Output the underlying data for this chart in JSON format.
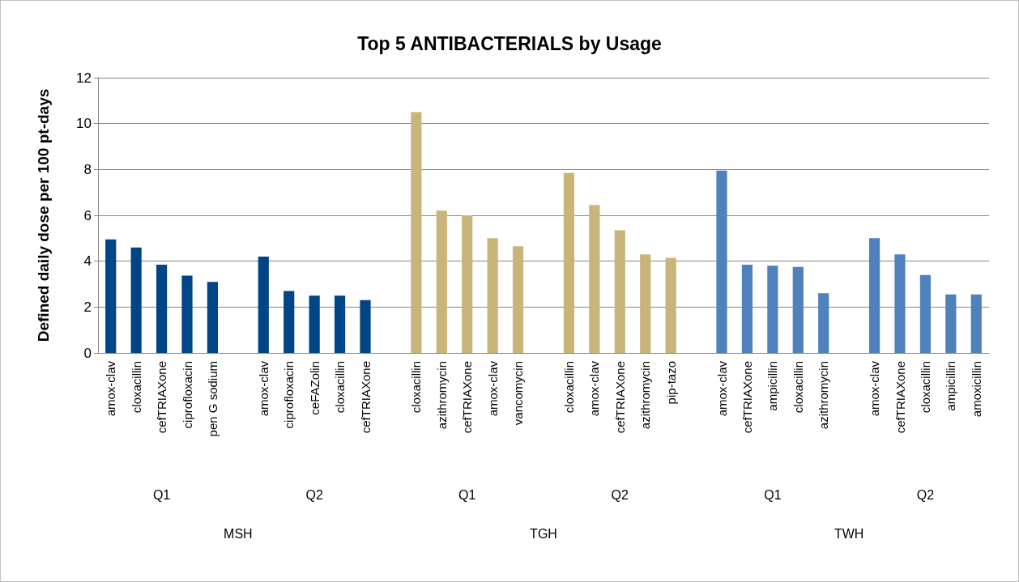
{
  "chart_data": {
    "type": "bar",
    "title": "Top 5 ANTIBACTERIALS by Usage",
    "ylabel": "Defined daily dose per 100 pt-days",
    "categories": [
      "amox-clav",
      "cloxacillin",
      "cefTRIAXone",
      "ciprofloxacin",
      "pen G sodium",
      null,
      "amox-clav",
      "ciprofloxacin",
      "ceFAZolin",
      "cloxacillin",
      "cefTRIAXone",
      null,
      "cloxacillin",
      "azithromycin",
      "cefTRIAXone",
      "amox-clav",
      "vancomycin",
      null,
      "cloxacillin",
      "amox-clav",
      "cefTRIAXone",
      "azithromycin",
      "pip-tazo",
      null,
      "amox-clav",
      "cefTRIAXone",
      "ampicillin",
      "cloxacillin",
      "azithromycin",
      null,
      "amox-clav",
      "cefTRIAXone",
      "cloxacillin",
      "ampicillin",
      "amoxicillin"
    ],
    "values": [
      4.95,
      4.6,
      3.85,
      3.37,
      3.1,
      null,
      4.2,
      2.7,
      2.5,
      2.5,
      2.3,
      null,
      10.5,
      6.2,
      6.0,
      5.0,
      4.65,
      null,
      7.85,
      6.45,
      5.35,
      4.3,
      4.15,
      null,
      7.95,
      3.85,
      3.8,
      3.75,
      2.6,
      null,
      5.0,
      4.3,
      3.4,
      2.55,
      2.55
    ],
    "colors": [
      "#004586",
      "#004586",
      "#004586",
      "#004586",
      "#004586",
      null,
      "#004586",
      "#004586",
      "#004586",
      "#004586",
      "#004586",
      null,
      "#c9b57a",
      "#c9b57a",
      "#c9b57a",
      "#c9b57a",
      "#c9b57a",
      null,
      "#c9b57a",
      "#c9b57a",
      "#c9b57a",
      "#c9b57a",
      "#c9b57a",
      null,
      "#4f81bd",
      "#4f81bd",
      "#4f81bd",
      "#4f81bd",
      "#4f81bd",
      null,
      "#4f81bd",
      "#4f81bd",
      "#4f81bd",
      "#4f81bd",
      "#4f81bd"
    ],
    "annotations": [
      "Q1",
      "Q2",
      "Q1",
      "Q2",
      "Q1",
      "Q2",
      "MSH",
      "TGH",
      "TWH"
    ],
    "ylim": [
      0,
      12
    ],
    "yticks": [
      0,
      2,
      4,
      6,
      8,
      10,
      12
    ],
    "grid": "y"
  }
}
